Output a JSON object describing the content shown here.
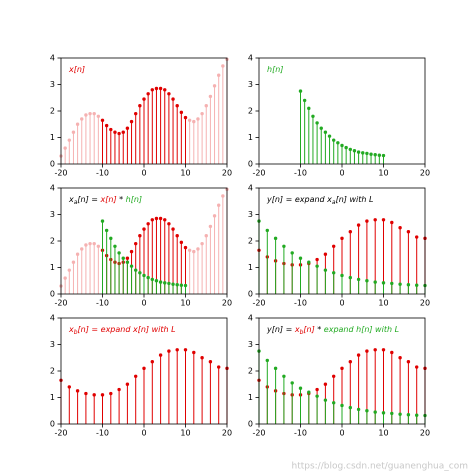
{
  "chart_data": [
    {
      "type": "stem",
      "annotation": [
        {
          "text": "x[n]",
          "color": "#e00000"
        }
      ],
      "xlim": [
        -20,
        20
      ],
      "ylim": [
        0,
        4
      ],
      "xticks": [
        -20,
        -10,
        0,
        10,
        20
      ],
      "yticks": [
        0,
        1,
        2,
        3,
        4
      ],
      "series": [
        {
          "color": "#e00000",
          "alpha": 0.3,
          "x": [
            -20,
            -19,
            -18,
            -17,
            -16,
            -15,
            -14,
            -13,
            -12,
            -11,
            11,
            12,
            13,
            14,
            15,
            16,
            17,
            18,
            19,
            20
          ],
          "values": [
            0.3,
            0.6,
            0.9,
            1.2,
            1.5,
            1.7,
            1.85,
            1.9,
            1.9,
            1.8,
            1.65,
            1.6,
            1.7,
            1.9,
            2.2,
            2.55,
            2.95,
            3.35,
            3.7,
            3.95
          ]
        },
        {
          "color": "#e00000",
          "alpha": 1,
          "x": [
            -10,
            -9,
            -8,
            -7,
            -6,
            -5,
            -4,
            -3,
            -2,
            -1,
            0,
            1,
            2,
            3,
            4,
            5,
            6,
            7,
            8,
            9,
            10
          ],
          "values": [
            1.65,
            1.45,
            1.3,
            1.2,
            1.15,
            1.2,
            1.35,
            1.6,
            1.9,
            2.2,
            2.45,
            2.65,
            2.8,
            2.85,
            2.85,
            2.8,
            2.65,
            2.45,
            2.2,
            1.95,
            1.75
          ]
        }
      ]
    },
    {
      "type": "stem",
      "annotation": [
        {
          "text": "h[n]",
          "color": "#22aa22"
        }
      ],
      "xlim": [
        -20,
        20
      ],
      "ylim": [
        0,
        4
      ],
      "xticks": [
        -20,
        -10,
        0,
        10,
        20
      ],
      "yticks": [
        0,
        1,
        2,
        3,
        4
      ],
      "series": [
        {
          "color": "#22aa22",
          "alpha": 1,
          "x": [
            -10,
            -9,
            -8,
            -7,
            -6,
            -5,
            -4,
            -3,
            -2,
            -1,
            0,
            1,
            2,
            3,
            4,
            5,
            6,
            7,
            8,
            9,
            10
          ],
          "values": [
            2.75,
            2.4,
            2.1,
            1.8,
            1.55,
            1.35,
            1.2,
            1.05,
            0.9,
            0.8,
            0.7,
            0.62,
            0.55,
            0.5,
            0.45,
            0.42,
            0.4,
            0.37,
            0.35,
            0.33,
            0.32
          ]
        }
      ]
    },
    {
      "type": "stem",
      "annotation": [
        {
          "text": "x",
          "color": "#000000"
        },
        {
          "text": "a",
          "color": "#000000",
          "sub": true
        },
        {
          "text": "[n] = ",
          "color": "#000000"
        },
        {
          "text": "x[n]",
          "color": "#e00000"
        },
        {
          "text": " * ",
          "color": "#000000"
        },
        {
          "text": "h[n]",
          "color": "#22aa22"
        }
      ],
      "xlim": [
        -20,
        20
      ],
      "ylim": [
        0,
        4
      ],
      "xticks": [
        -20,
        -10,
        0,
        10,
        20
      ],
      "yticks": [
        0,
        1,
        2,
        3,
        4
      ],
      "series": [
        {
          "color": "#e00000",
          "alpha": 0.3,
          "x": [
            -20,
            -19,
            -18,
            -17,
            -16,
            -15,
            -14,
            -13,
            -12,
            -11,
            11,
            12,
            13,
            14,
            15,
            16,
            17,
            18,
            19,
            20
          ],
          "values": [
            0.3,
            0.6,
            0.9,
            1.2,
            1.5,
            1.7,
            1.85,
            1.9,
            1.9,
            1.8,
            1.65,
            1.6,
            1.7,
            1.9,
            2.2,
            2.55,
            2.95,
            3.35,
            3.7,
            3.95
          ]
        },
        {
          "color": "#e00000",
          "alpha": 1,
          "x": [
            -10,
            -9,
            -8,
            -7,
            -6,
            -5,
            -4,
            -3,
            -2,
            -1,
            0,
            1,
            2,
            3,
            4,
            5,
            6,
            7,
            8,
            9,
            10
          ],
          "values": [
            1.65,
            1.45,
            1.3,
            1.2,
            1.15,
            1.2,
            1.35,
            1.6,
            1.9,
            2.2,
            2.45,
            2.65,
            2.8,
            2.85,
            2.85,
            2.8,
            2.65,
            2.45,
            2.2,
            1.95,
            1.75
          ]
        },
        {
          "color": "#22aa22",
          "alpha": 1,
          "x": [
            -10,
            -9,
            -8,
            -7,
            -6,
            -5,
            -4,
            -3,
            -2,
            -1,
            0,
            1,
            2,
            3,
            4,
            5,
            6,
            7,
            8,
            9,
            10
          ],
          "values": [
            2.75,
            2.4,
            2.1,
            1.8,
            1.55,
            1.35,
            1.2,
            1.05,
            0.9,
            0.8,
            0.7,
            0.62,
            0.55,
            0.5,
            0.45,
            0.42,
            0.4,
            0.37,
            0.35,
            0.33,
            0.32
          ]
        }
      ]
    },
    {
      "type": "stem",
      "annotation": [
        {
          "text": "y[n] = expand x",
          "color": "#000000"
        },
        {
          "text": "a",
          "color": "#000000",
          "sub": true
        },
        {
          "text": "[n] with L",
          "color": "#000000"
        }
      ],
      "xlim": [
        -20,
        20
      ],
      "ylim": [
        0,
        4
      ],
      "xticks": [
        -20,
        -10,
        0,
        10,
        20
      ],
      "yticks": [
        0,
        1,
        2,
        3,
        4
      ],
      "series": [
        {
          "color": "#e00000",
          "alpha": 1,
          "x": [
            -20,
            -18,
            -16,
            -14,
            -12,
            -10,
            -8,
            -6,
            -4,
            -2,
            0,
            2,
            4,
            6,
            8,
            10,
            12,
            14,
            16,
            18,
            20
          ],
          "values": [
            1.65,
            1.4,
            1.25,
            1.15,
            1.1,
            1.1,
            1.15,
            1.3,
            1.5,
            1.8,
            2.1,
            2.35,
            2.6,
            2.75,
            2.8,
            2.8,
            2.7,
            2.5,
            2.35,
            2.15,
            2.1
          ]
        },
        {
          "color": "#22aa22",
          "alpha": 1,
          "x": [
            -20,
            -18,
            -16,
            -14,
            -12,
            -10,
            -8,
            -6,
            -4,
            -2,
            0,
            2,
            4,
            6,
            8,
            10,
            12,
            14,
            16,
            18,
            20
          ],
          "values": [
            2.75,
            2.4,
            2.1,
            1.8,
            1.55,
            1.35,
            1.2,
            1.05,
            0.9,
            0.8,
            0.7,
            0.62,
            0.55,
            0.5,
            0.45,
            0.42,
            0.4,
            0.37,
            0.35,
            0.33,
            0.32
          ]
        }
      ]
    },
    {
      "type": "stem",
      "annotation": [
        {
          "text": "x",
          "color": "#e00000"
        },
        {
          "text": "b",
          "color": "#e00000",
          "sub": true
        },
        {
          "text": "[n] = expand x[n] with L",
          "color": "#e00000"
        }
      ],
      "xlim": [
        -20,
        20
      ],
      "ylim": [
        0,
        4
      ],
      "xticks": [
        -20,
        -10,
        0,
        10,
        20
      ],
      "yticks": [
        0,
        1,
        2,
        3,
        4
      ],
      "series": [
        {
          "color": "#e00000",
          "alpha": 1,
          "x": [
            -20,
            -18,
            -16,
            -14,
            -12,
            -10,
            -8,
            -6,
            -4,
            -2,
            0,
            2,
            4,
            6,
            8,
            10,
            12,
            14,
            16,
            18,
            20
          ],
          "values": [
            1.65,
            1.4,
            1.25,
            1.15,
            1.1,
            1.1,
            1.15,
            1.3,
            1.5,
            1.8,
            2.1,
            2.35,
            2.6,
            2.75,
            2.8,
            2.8,
            2.7,
            2.5,
            2.35,
            2.15,
            2.1
          ]
        }
      ]
    },
    {
      "type": "stem",
      "annotation": [
        {
          "text": "y[n] = ",
          "color": "#000000"
        },
        {
          "text": "x",
          "color": "#e00000"
        },
        {
          "text": "b",
          "color": "#e00000",
          "sub": true
        },
        {
          "text": "[n]",
          "color": "#e00000"
        },
        {
          "text": " * ",
          "color": "#000000"
        },
        {
          "text": "expand h[n] with L",
          "color": "#22aa22"
        }
      ],
      "xlim": [
        -20,
        20
      ],
      "ylim": [
        0,
        4
      ],
      "xticks": [
        -20,
        -10,
        0,
        10,
        20
      ],
      "yticks": [
        0,
        1,
        2,
        3,
        4
      ],
      "series": [
        {
          "color": "#e00000",
          "alpha": 1,
          "x": [
            -20,
            -18,
            -16,
            -14,
            -12,
            -10,
            -8,
            -6,
            -4,
            -2,
            0,
            2,
            4,
            6,
            8,
            10,
            12,
            14,
            16,
            18,
            20
          ],
          "values": [
            1.65,
            1.4,
            1.25,
            1.15,
            1.1,
            1.1,
            1.15,
            1.3,
            1.5,
            1.8,
            2.1,
            2.35,
            2.6,
            2.75,
            2.8,
            2.8,
            2.7,
            2.5,
            2.35,
            2.15,
            2.1
          ]
        },
        {
          "color": "#22aa22",
          "alpha": 1,
          "x": [
            -20,
            -18,
            -16,
            -14,
            -12,
            -10,
            -8,
            -6,
            -4,
            -2,
            0,
            2,
            4,
            6,
            8,
            10,
            12,
            14,
            16,
            18,
            20
          ],
          "values": [
            2.75,
            2.4,
            2.1,
            1.8,
            1.55,
            1.35,
            1.2,
            1.05,
            0.9,
            0.8,
            0.7,
            0.62,
            0.55,
            0.5,
            0.45,
            0.42,
            0.4,
            0.37,
            0.35,
            0.33,
            0.32
          ]
        }
      ]
    }
  ],
  "watermark": "https://blog.csdn.net/guanenghua_com"
}
